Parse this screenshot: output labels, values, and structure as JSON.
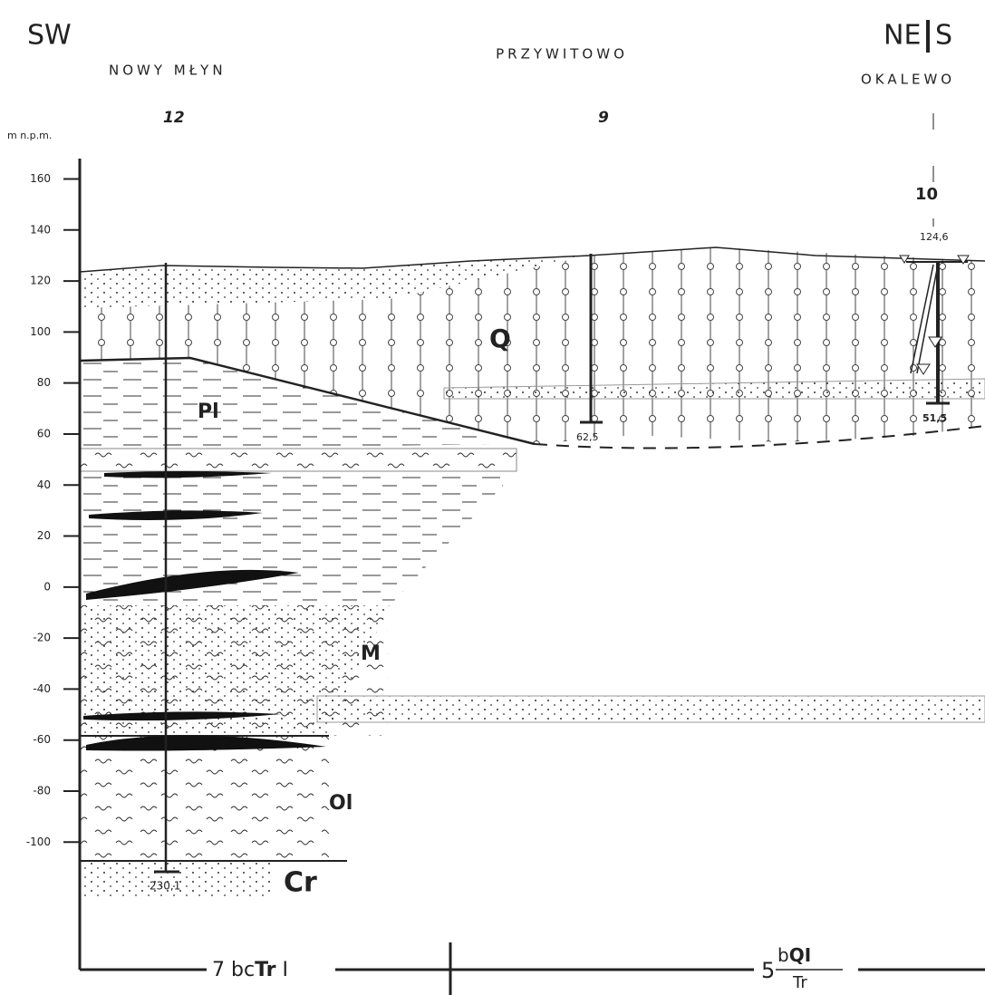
{
  "header": {
    "left_direction": "SW",
    "right_direction_1": "NE",
    "right_direction_2": "S"
  },
  "locations": [
    {
      "name": "NOWY MŁYN",
      "borehole": "12",
      "depth": "230,1"
    },
    {
      "name": "PRZYWITOWO",
      "borehole": "9",
      "depth": "62,5"
    },
    {
      "name": "OKALEWO",
      "borehole": "10",
      "elevation": "124,6",
      "depth": "51,5"
    }
  ],
  "axis": {
    "label": "m n.p.m.",
    "ylim": [
      -150,
      168
    ],
    "ticks": [
      160,
      140,
      120,
      100,
      80,
      60,
      40,
      20,
      0,
      -20,
      -40,
      -60,
      -80,
      -100
    ]
  },
  "units": [
    "Q",
    "Pl",
    "M",
    "Ol",
    "Cr"
  ],
  "bottom": [
    {
      "number": "7",
      "prefix": "bc",
      "bold": "Tr",
      "suffix": "I"
    },
    {
      "number": "5",
      "numerator_prefix": "b",
      "numerator_bold": "QI",
      "denominator": "Tr"
    }
  ]
}
